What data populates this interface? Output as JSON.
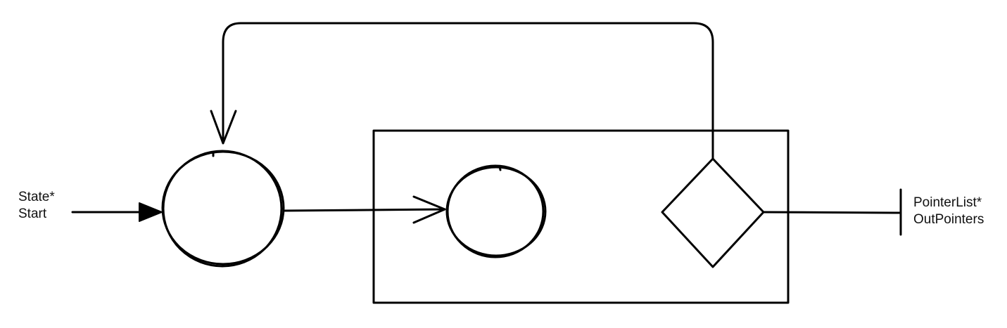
{
  "diagram": {
    "input": {
      "type": "State*",
      "name": "Start"
    },
    "output": {
      "type": "PointerList*",
      "name": "OutPointers"
    },
    "colors": {
      "stroke": "#000000",
      "background": "#ffffff",
      "text": "#111111"
    }
  }
}
